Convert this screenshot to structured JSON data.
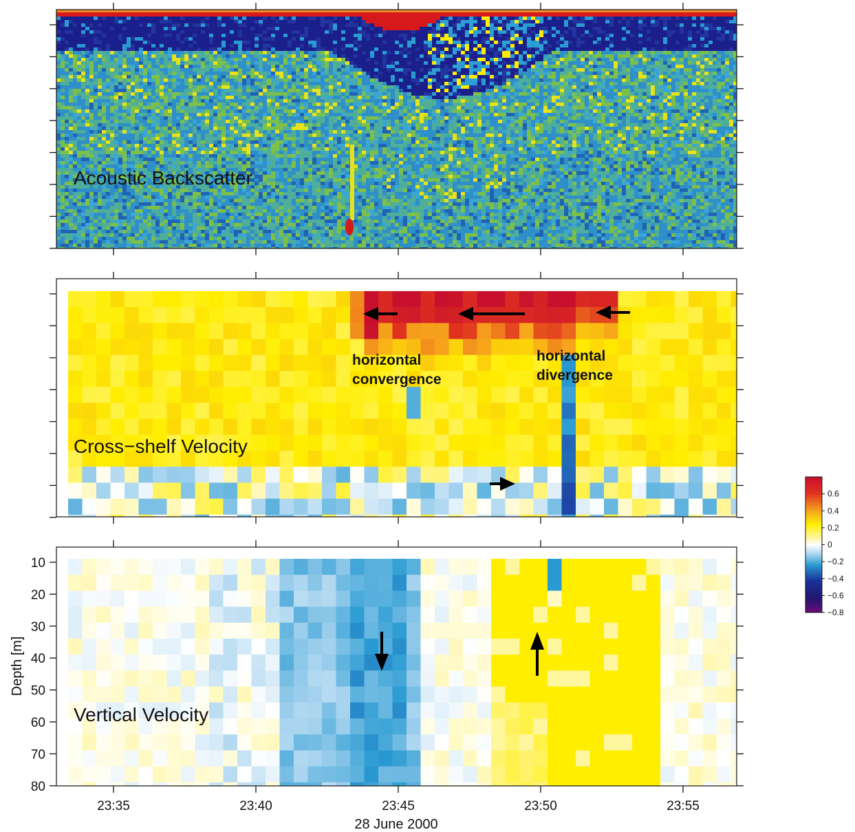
{
  "panels": {
    "backscatter": {
      "label": "Acoustic Backscatter"
    },
    "cross_shelf": {
      "label": "Cross−shelf Velocity",
      "annotations": [
        {
          "text": "horizontal",
          "text2": "convergence"
        },
        {
          "text": "horizontal",
          "text2": "divergence"
        }
      ]
    },
    "vertical": {
      "label": "Vertical Velocity"
    }
  },
  "axes": {
    "ylabel": "Depth [m]",
    "yticks": [
      "10",
      "20",
      "30",
      "40",
      "50",
      "60",
      "70",
      "80"
    ],
    "xticks": [
      "23:35",
      "23:40",
      "23:45",
      "23:50",
      "23:55"
    ],
    "xlabel": "28 June 2000"
  },
  "colorbar": {
    "ticks": [
      "0.6",
      "0.4",
      "0.2",
      "0",
      "−0.2",
      "−0.4",
      "−0.6",
      "−0.8"
    ],
    "range": [
      -0.8,
      0.8
    ]
  },
  "colors": {
    "red": "#d7191c",
    "orange": "#f08a24",
    "yellow": "#ffee00",
    "lightblue": "#8fc4e6",
    "blue": "#2a9bd2",
    "navy": "#1a1a8c",
    "purple": "#5a0a78"
  },
  "chart_data": [
    {
      "type": "heatmap",
      "title": "Acoustic Backscatter",
      "xlim": [
        "23:33",
        "23:57"
      ],
      "ylim": [
        0,
        80
      ]
    },
    {
      "type": "heatmap",
      "title": "Cross−shelf Velocity",
      "xlim": [
        "23:33",
        "23:57"
      ],
      "ylim": [
        0,
        80
      ],
      "clim": [
        -0.8,
        0.8
      ],
      "x": [
        "23:43.5",
        "23:45",
        "23:47",
        "23:49",
        "23:50.5",
        "23:52"
      ],
      "series": [
        {
          "values": [
            0.5,
            0.7,
            0.75,
            0.75,
            0.1,
            0.6
          ]
        }
      ]
    },
    {
      "type": "heatmap",
      "title": "Vertical Velocity",
      "xlabel": "28 June 2000",
      "ylabel": "Depth [m]",
      "xticks": [
        "23:35",
        "23:40",
        "23:45",
        "23:50",
        "23:55"
      ],
      "yticks": [
        10,
        20,
        30,
        40,
        50,
        60,
        70,
        80
      ],
      "xlim": [
        "23:33",
        "23:57"
      ],
      "ylim": [
        80,
        5
      ],
      "clim": [
        -0.8,
        0.8
      ],
      "x": [
        "23:40.5",
        "23:42",
        "23:43.5",
        "23:45",
        "23:48",
        "23:50",
        "23:52"
      ],
      "series": [
        {
          "values": [
            -0.05,
            -0.2,
            -0.3,
            -0.1,
            0.2,
            0.25,
            0.2
          ]
        }
      ]
    }
  ]
}
